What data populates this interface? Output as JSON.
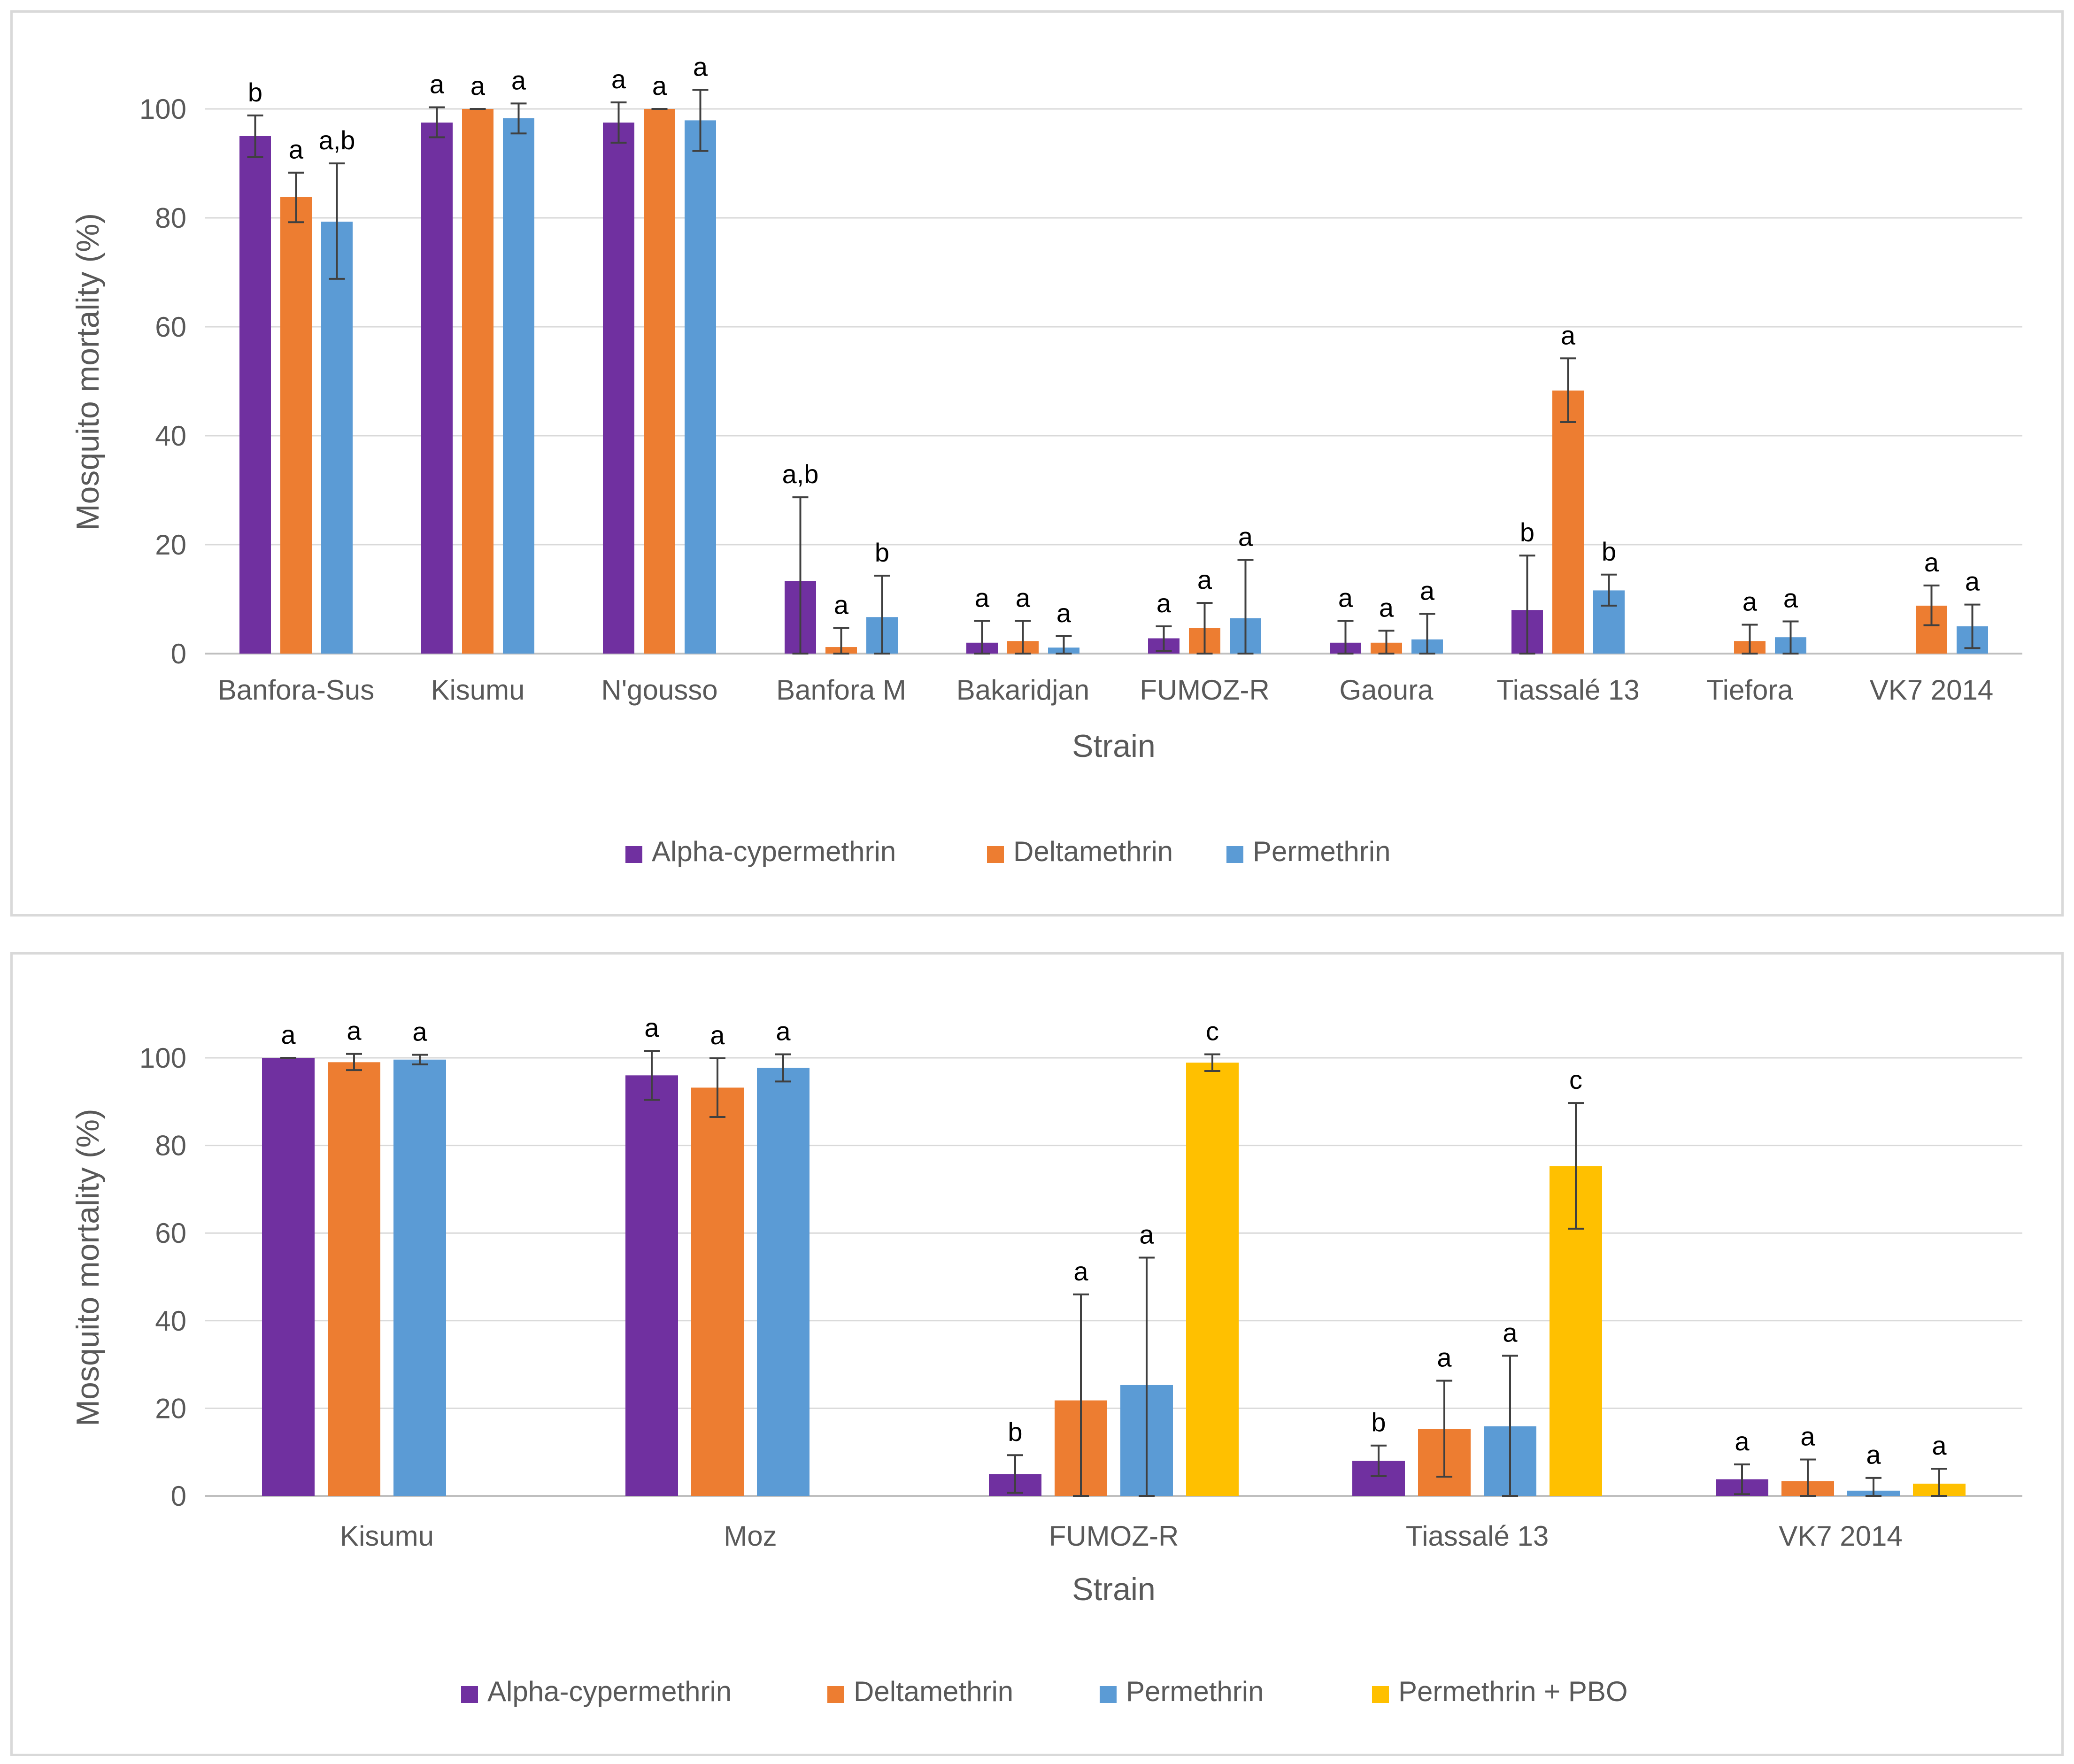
{
  "chart_data": [
    {
      "type": "bar",
      "title": "",
      "xlabel": "Strain",
      "ylabel": "Mosquito mortality (%)",
      "ylim": [
        0,
        100
      ],
      "yticks": [
        0,
        20,
        40,
        60,
        80,
        100
      ],
      "grid": true,
      "legend_position": "bottom",
      "categories": [
        "Banfora-Sus",
        "Kisumu",
        "N'gousso",
        "Banfora M",
        "Bakaridjan",
        "FUMOZ-R",
        "Gaoura",
        "Tiassalé 13",
        "Tiefora",
        "VK7 2014"
      ],
      "series": [
        {
          "name": "Alpha-cypermethrin",
          "color": "#7030A0",
          "values": [
            95,
            97.5,
            97.5,
            13.3,
            2,
            2.8,
            2,
            8,
            null,
            null
          ],
          "err_low": [
            91.2,
            94.8,
            93.8,
            0,
            0,
            0.5,
            0,
            0,
            null,
            null
          ],
          "err_high": [
            98.8,
            100.3,
            101.2,
            28.7,
            6,
            5,
            6,
            18,
            null,
            null
          ],
          "labels": [
            "b",
            "a",
            "a",
            "a,b",
            "a",
            "a",
            "a",
            "b",
            "",
            ""
          ]
        },
        {
          "name": "Deltamethrin",
          "color": "#ED7D31",
          "values": [
            83.8,
            100,
            100,
            1.2,
            2.3,
            4.7,
            2,
            48.3,
            2.3,
            8.8
          ],
          "err_low": [
            79.2,
            100,
            100,
            0,
            0,
            0,
            0,
            42.5,
            0,
            5.2
          ],
          "err_high": [
            88.3,
            100,
            100,
            4.7,
            6,
            9.3,
            4.2,
            54.2,
            5.3,
            12.5
          ],
          "labels": [
            "a",
            "a",
            "a",
            "a",
            "a",
            "a",
            "a",
            "a",
            "a",
            "a"
          ]
        },
        {
          "name": "Permethrin",
          "color": "#5B9BD5",
          "values": [
            79.3,
            98.3,
            97.9,
            6.7,
            1.1,
            6.5,
            2.6,
            11.6,
            3,
            5
          ],
          "err_low": [
            68.8,
            95.5,
            92.3,
            0,
            0,
            0,
            0,
            8.8,
            0,
            1
          ],
          "err_high": [
            90,
            101,
            103.5,
            14.3,
            3.2,
            17.2,
            7.3,
            14.5,
            5.9,
            9
          ],
          "labels": [
            "a,b",
            "a",
            "a",
            "b",
            "a",
            "a",
            "a",
            "b",
            "a",
            "a"
          ]
        }
      ]
    },
    {
      "type": "bar",
      "title": "",
      "xlabel": "Strain",
      "ylabel": "Mosquito mortality (%)",
      "ylim": [
        0,
        100
      ],
      "yticks": [
        0,
        20,
        40,
        60,
        80,
        100
      ],
      "grid": true,
      "legend_position": "bottom",
      "categories": [
        "Kisumu",
        "Moz",
        "FUMOZ-R",
        "Tiassalé 13",
        "VK7 2014"
      ],
      "series": [
        {
          "name": "Alpha-cypermethrin",
          "color": "#7030A0",
          "values": [
            100,
            96,
            5,
            8,
            3.8
          ],
          "err_low": [
            100,
            90.4,
            0.7,
            4.5,
            0.4
          ],
          "err_high": [
            100,
            101.6,
            9.3,
            11.5,
            7.2
          ],
          "labels": [
            "a",
            "a",
            "b",
            "b",
            "a"
          ]
        },
        {
          "name": "Deltamethrin",
          "color": "#ED7D31",
          "values": [
            99,
            93.2,
            21.8,
            15.3,
            3.4
          ],
          "err_low": [
            97.2,
            86.5,
            0,
            4.4,
            0
          ],
          "err_high": [
            100.9,
            99.9,
            46,
            26.3,
            8.3
          ],
          "labels": [
            "a",
            "a",
            "a",
            "a",
            "a"
          ]
        },
        {
          "name": "Permethrin",
          "color": "#5B9BD5",
          "values": [
            99.6,
            97.7,
            25.3,
            15.9,
            1.2
          ],
          "err_low": [
            98.5,
            94.6,
            0,
            0,
            0
          ],
          "err_high": [
            100.7,
            100.8,
            54.4,
            32,
            4.1
          ],
          "labels": [
            "a",
            "a",
            "a",
            "a",
            "a"
          ]
        },
        {
          "name": "Permethrin + PBO",
          "color": "#FFC000",
          "values": [
            null,
            null,
            98.9,
            75.3,
            2.8
          ],
          "err_low": [
            null,
            null,
            97,
            61,
            0
          ],
          "err_high": [
            null,
            null,
            100.8,
            89.7,
            6.2
          ],
          "labels": [
            "",
            "",
            "c",
            "c",
            "a"
          ]
        }
      ]
    }
  ]
}
